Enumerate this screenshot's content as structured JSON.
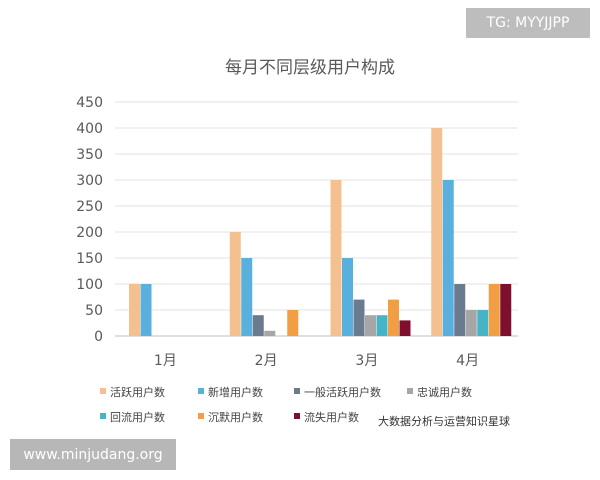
{
  "watermarks": {
    "top": "TG: MYYJJPP",
    "bottom": "www.minjudang.org",
    "overlay": "大数据分析与运营知识星球"
  },
  "chart_data": {
    "type": "bar",
    "title": "每月不同层级用户构成",
    "xlabel": "",
    "ylabel": "",
    "ylim": [
      0,
      450
    ],
    "yticks": [
      0,
      50,
      100,
      150,
      200,
      250,
      300,
      350,
      400,
      450
    ],
    "grid": true,
    "legend_position": "bottom",
    "categories": [
      "1月",
      "2月",
      "3月",
      "4月"
    ],
    "series": [
      {
        "name": "活跃用户数",
        "color": "#f4c08f",
        "values": [
          100,
          200,
          300,
          400
        ]
      },
      {
        "name": "新增用户数",
        "color": "#5ab0dc",
        "values": [
          100,
          150,
          150,
          300
        ]
      },
      {
        "name": "一般活跃用户数",
        "color": "#6a7a8f",
        "values": [
          0,
          40,
          70,
          100
        ]
      },
      {
        "name": "忠诚用户数",
        "color": "#a6a6a6",
        "values": [
          0,
          10,
          40,
          50
        ]
      },
      {
        "name": "回流用户数",
        "color": "#47b3c6",
        "values": [
          0,
          0,
          40,
          50
        ]
      },
      {
        "name": "沉默用户数",
        "color": "#f29e45",
        "values": [
          0,
          50,
          70,
          100
        ]
      },
      {
        "name": "流失用户数",
        "color": "#7f0f2f",
        "values": [
          0,
          0,
          30,
          100
        ]
      }
    ]
  }
}
